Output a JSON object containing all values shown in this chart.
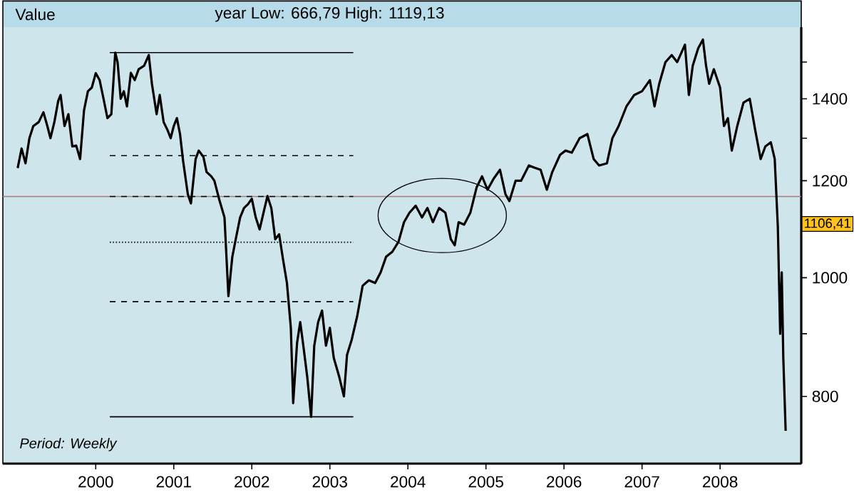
{
  "chart_data": {
    "type": "line",
    "title": "Value",
    "subtitle": "year Low: 666,79 High: 1119,13",
    "series": [
      {
        "color": "#000000",
        "x": [
          1999.0,
          1999.05,
          1999.1,
          1999.15,
          1999.2,
          1999.27,
          1999.33,
          1999.38,
          1999.42,
          1999.47,
          1999.52,
          1999.55,
          1999.6,
          1999.65,
          1999.7,
          1999.75,
          1999.8,
          1999.85,
          1999.9,
          1999.95,
          2000.0,
          2000.05,
          2000.1,
          2000.15,
          2000.2,
          2000.25,
          2000.28,
          2000.32,
          2000.36,
          2000.4,
          2000.45,
          2000.5,
          2000.55,
          2000.62,
          2000.68,
          2000.72,
          2000.78,
          2000.82,
          2000.87,
          2000.92,
          2000.96,
          2001.0,
          2001.04,
          2001.08,
          2001.12,
          2001.18,
          2001.22,
          2001.28,
          2001.32,
          2001.38,
          2001.42,
          2001.48,
          2001.52,
          2001.58,
          2001.65,
          2001.7,
          2001.75,
          2001.8,
          2001.85,
          2001.9,
          2001.95,
          2002.0,
          2002.05,
          2002.1,
          2002.15,
          2002.2,
          2002.25,
          2002.3,
          2002.35,
          2002.4,
          2002.45,
          2002.5,
          2002.53,
          2002.58,
          2002.62,
          2002.66,
          2002.71,
          2002.76,
          2002.8,
          2002.85,
          2002.9,
          2002.95,
          2003.0,
          2003.05,
          2003.12,
          2003.18,
          2003.22,
          2003.28,
          2003.35,
          2003.42,
          2003.5,
          2003.58,
          2003.65,
          2003.72,
          2003.8,
          2003.88,
          2003.95,
          2004.02,
          2004.1,
          2004.18,
          2004.25,
          2004.32,
          2004.4,
          2004.48,
          2004.55,
          2004.6,
          2004.65,
          2004.72,
          2004.8,
          2004.88,
          2004.95,
          2005.02,
          2005.1,
          2005.18,
          2005.25,
          2005.3,
          2005.38,
          2005.45,
          2005.55,
          2005.62,
          2005.7,
          2005.78,
          2005.85,
          2005.95,
          2006.02,
          2006.1,
          2006.2,
          2006.3,
          2006.38,
          2006.45,
          2006.55,
          2006.62,
          2006.7,
          2006.8,
          2006.9,
          2007.0,
          2007.1,
          2007.16,
          2007.22,
          2007.3,
          2007.38,
          2007.45,
          2007.55,
          2007.6,
          2007.65,
          2007.72,
          2007.78,
          2007.82,
          2007.86,
          2007.92,
          2008.0,
          2008.05,
          2008.1,
          2008.15,
          2008.22,
          2008.3,
          2008.38,
          2008.45,
          2008.52,
          2008.58,
          2008.65,
          2008.7,
          2008.74,
          2008.77,
          2008.79,
          2008.81,
          2008.84
        ],
        "values": [
          1229,
          1275,
          1240,
          1300,
          1330,
          1340,
          1365,
          1330,
          1300,
          1340,
          1395,
          1410,
          1330,
          1360,
          1280,
          1282,
          1250,
          1370,
          1420,
          1430,
          1469,
          1450,
          1400,
          1350,
          1360,
          1527,
          1500,
          1400,
          1420,
          1380,
          1470,
          1450,
          1480,
          1490,
          1520,
          1440,
          1360,
          1410,
          1340,
          1320,
          1300,
          1330,
          1350,
          1310,
          1245,
          1170,
          1150,
          1250,
          1270,
          1255,
          1220,
          1210,
          1200,
          1160,
          1120,
          966,
          1040,
          1080,
          1120,
          1140,
          1148,
          1160,
          1120,
          1095,
          1130,
          1166,
          1140,
          1075,
          1085,
          1035,
          990,
          910,
          790,
          885,
          920,
          880,
          830,
          770,
          880,
          920,
          940,
          880,
          910,
          860,
          830,
          800,
          865,
          890,
          930,
          985,
          995,
          990,
          1010,
          1040,
          1050,
          1070,
          1110,
          1130,
          1145,
          1120,
          1140,
          1110,
          1140,
          1130,
          1075,
          1063,
          1110,
          1105,
          1130,
          1185,
          1210,
          1180,
          1205,
          1225,
          1170,
          1155,
          1200,
          1200,
          1235,
          1230,
          1225,
          1180,
          1220,
          1260,
          1270,
          1265,
          1300,
          1310,
          1250,
          1235,
          1240,
          1300,
          1330,
          1380,
          1410,
          1420,
          1450,
          1380,
          1440,
          1500,
          1520,
          1500,
          1550,
          1410,
          1490,
          1540,
          1565,
          1490,
          1440,
          1480,
          1430,
          1330,
          1350,
          1270,
          1330,
          1390,
          1400,
          1320,
          1250,
          1280,
          1290,
          1250,
          1100,
          900,
          1010,
          860,
          750
        ]
      },
      {
        "type": "line",
        "color": "#000000",
        "line_style": "solid",
        "x": [
          2000.18,
          2003.3
        ],
        "values": [
          1527,
          1527
        ]
      },
      {
        "type": "line",
        "color": "#000000",
        "line_style": "dashed",
        "x": [
          2000.18,
          2003.3
        ],
        "values": [
          1258,
          1258
        ]
      },
      {
        "type": "line",
        "color": "#000000",
        "line_style": "dashed",
        "x": [
          2000.18,
          2003.3
        ],
        "values": [
          1165,
          1165
        ]
      },
      {
        "type": "line",
        "color": "#000000",
        "line_style": "dotted",
        "x": [
          2000.18,
          2003.3
        ],
        "values": [
          1069,
          1069
        ]
      },
      {
        "type": "line",
        "color": "#000000",
        "line_style": "dashed",
        "x": [
          2000.18,
          2003.3
        ],
        "values": [
          956,
          956
        ]
      },
      {
        "type": "line",
        "color": "#000000",
        "line_style": "solid",
        "x": [
          2000.18,
          2003.3
        ],
        "values": [
          770,
          770
        ]
      }
    ],
    "xlim": [
      1998.81,
      2009.04
    ],
    "xticks": [
      2000,
      2001,
      2002,
      2003,
      2004,
      2005,
      2006,
      2007,
      2008
    ],
    "ylim": [
      705,
      1602
    ],
    "log": "y",
    "yticks": [
      800,
      {
        "value": 900,
        "label": null
      },
      1000,
      {
        "value": 1100,
        "label": null
      },
      1200,
      {
        "value": 1300,
        "label": null
      },
      1400,
      {
        "value": 1500,
        "label": null
      }
    ],
    "ref_lines": [
      {
        "axis": "y",
        "value": 1165,
        "color": "#b07a7a"
      }
    ],
    "annotations": [
      "1106,41",
      "Period: Weekly"
    ],
    "grid": false
  }
}
